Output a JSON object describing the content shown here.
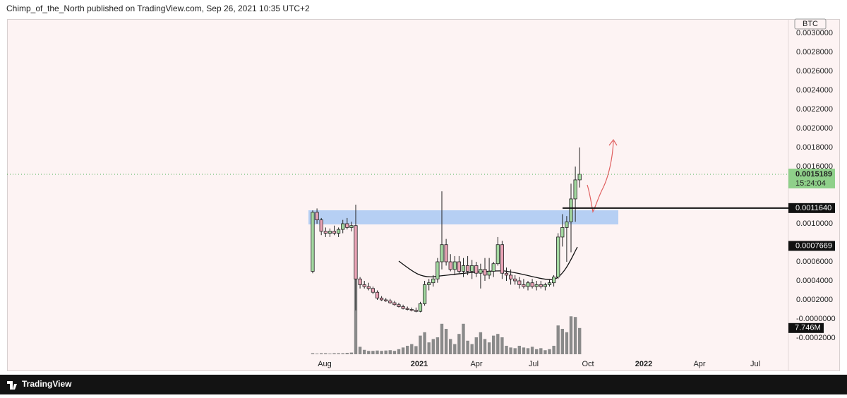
{
  "chart_data": {
    "type": "candlestick",
    "header": "Chimp_of_the_North published on TradingView.com, Sep 26, 2021 10:35 UTC+2",
    "currency": "BTC",
    "footer": "TradingView",
    "up_color": "#a3d8a0",
    "down_color": "#eaa3b6",
    "volume_color": "#8a8a8a",
    "ylim": [
      -0.00024,
      0.00302
    ],
    "yticks": [
      {
        "value": 0.003,
        "label": "0.0030000"
      },
      {
        "value": 0.0028,
        "label": "0.0028000"
      },
      {
        "value": 0.0026,
        "label": "0.0026000"
      },
      {
        "value": 0.0024,
        "label": "0.0024000"
      },
      {
        "value": 0.0022,
        "label": "0.0022000"
      },
      {
        "value": 0.002,
        "label": "0.0020000"
      },
      {
        "value": 0.0018,
        "label": "0.0018000"
      },
      {
        "value": 0.0016,
        "label": "0.0016000"
      },
      {
        "value": 0.001,
        "label": "0.0010000"
      },
      {
        "value": 0.0006,
        "label": "0.0006000"
      },
      {
        "value": 0.0004,
        "label": "0.0004000"
      },
      {
        "value": 0.0002,
        "label": "0.0002000"
      },
      {
        "value": 0,
        "label": "-0.0000000"
      },
      {
        "value": -0.0002,
        "label": "-0.0002000"
      }
    ],
    "x_labels": [
      "Aug",
      "2021",
      "Apr",
      "Jul",
      "Oct",
      "2022",
      "Apr",
      "Jul"
    ],
    "open": [
      0.0005,
      0.00112,
      0.00104,
      0.00092,
      0.0009,
      0.00092,
      0.0009,
      0.00094,
      0.001,
      0.00096,
      0.00098,
      0.00042,
      0.00036,
      0.00034,
      0.00032,
      0.00028,
      0.00022,
      0.0002,
      0.00019,
      0.00017,
      0.00015,
      0.00013,
      0.00011,
      0.0001,
      9e-05,
      8e-05,
      0.00016,
      0.00036,
      0.00038,
      0.00042,
      0.0006,
      0.00078,
      0.0006,
      0.00052,
      0.0006,
      0.0005,
      0.00056,
      0.0005,
      0.00056,
      0.00048,
      0.00052,
      0.00046,
      0.0005,
      0.00058,
      0.00078,
      0.00048,
      0.00046,
      0.00042,
      0.0004,
      0.00036,
      0.00034,
      0.00038,
      0.00034,
      0.00036,
      0.00034,
      0.00036,
      0.00038,
      0.00044,
      0.00086,
      0.00096,
      0.00102,
      0.00126,
      0.00146
    ],
    "high": [
      0.00114,
      0.00116,
      0.00106,
      0.00096,
      0.00095,
      0.00098,
      0.00096,
      0.00104,
      0.00106,
      0.00102,
      0.0012,
      0.00044,
      0.0004,
      0.00038,
      0.00034,
      0.0003,
      0.00024,
      0.00022,
      0.00021,
      0.00019,
      0.00017,
      0.00015,
      0.00013,
      0.00012,
      0.00012,
      0.00018,
      0.0004,
      0.00042,
      0.00046,
      0.00064,
      0.00134,
      0.00084,
      0.00068,
      0.00066,
      0.00066,
      0.00064,
      0.00066,
      0.00062,
      0.0006,
      0.00058,
      0.00064,
      0.00064,
      0.0006,
      0.00086,
      0.00082,
      0.00054,
      0.00052,
      0.00046,
      0.00044,
      0.00042,
      0.0004,
      0.00042,
      0.0004,
      0.0004,
      0.00038,
      0.00042,
      0.00046,
      0.0009,
      0.0011,
      0.00108,
      0.00142,
      0.0016,
      0.0018
    ],
    "low": [
      0.00048,
      0.001,
      0.00088,
      0.00086,
      0.00086,
      0.00088,
      0.00086,
      0.0009,
      0.00094,
      0.00092,
      9e-05,
      0.00032,
      0.00032,
      0.0003,
      0.00026,
      0.0002,
      0.00019,
      0.00018,
      0.00016,
      0.00014,
      0.00012,
      0.0001,
      9e-05,
      8e-05,
      7e-05,
      7e-05,
      0.00014,
      0.0003,
      0.00034,
      0.00038,
      0.00052,
      0.00056,
      0.0005,
      0.00046,
      0.00048,
      0.00044,
      0.00046,
      0.00042,
      0.00044,
      0.00032,
      0.0004,
      0.00042,
      0.00044,
      0.00056,
      0.00042,
      0.0004,
      0.00036,
      0.00036,
      0.00032,
      0.00032,
      0.0003,
      0.00032,
      0.0003,
      0.00032,
      0.0003,
      0.00034,
      0.00034,
      0.00042,
      0.00076,
      0.0006,
      0.0007,
      0.00102,
      0.00138
    ],
    "close": [
      0.00112,
      0.00104,
      0.00092,
      0.0009,
      0.00092,
      0.0009,
      0.00094,
      0.001,
      0.00096,
      0.00098,
      0.00042,
      0.00036,
      0.00034,
      0.00032,
      0.00028,
      0.00022,
      0.0002,
      0.00019,
      0.00017,
      0.00015,
      0.00013,
      0.00011,
      0.0001,
      9e-05,
      8e-05,
      0.00016,
      0.00036,
      0.00038,
      0.00042,
      0.0006,
      0.00078,
      0.0006,
      0.00052,
      0.0006,
      0.0005,
      0.00056,
      0.0005,
      0.00056,
      0.00048,
      0.00052,
      0.00046,
      0.0005,
      0.00058,
      0.00078,
      0.00048,
      0.00046,
      0.00042,
      0.0004,
      0.00036,
      0.00034,
      0.00038,
      0.00034,
      0.00036,
      0.00034,
      0.00036,
      0.00038,
      0.00044,
      0.00086,
      0.00096,
      0.00102,
      0.00126,
      0.00146,
      0.0015189
    ],
    "volume": [
      0.3,
      0.2,
      0.3,
      0.3,
      0.2,
      0.3,
      0.3,
      0.3,
      0.4,
      0.5,
      25,
      2.2,
      1.3,
      1.0,
      1.0,
      1.1,
      1.0,
      1.1,
      1.2,
      1.0,
      1.5,
      2.0,
      2.5,
      3.0,
      2.4,
      5.5,
      6.5,
      3.5,
      4.5,
      5.0,
      9.0,
      7.5,
      4.5,
      3.0,
      6.0,
      9.0,
      4.0,
      3.0,
      5.0,
      6.5,
      4.5,
      3.5,
      5.5,
      6.0,
      5.0,
      2.5,
      2.0,
      1.8,
      2.5,
      2.0,
      1.8,
      2.2,
      1.5,
      1.8,
      1.2,
      1.5,
      2.5,
      8.5,
      7.5,
      6.5,
      11.2,
      11.0,
      7.746
    ],
    "volume_label": "7.746M",
    "countdown": "15:24:04",
    "level": {
      "value": 0.001164,
      "label": "0.0011640"
    },
    "ma_last": 0.0007669
  }
}
